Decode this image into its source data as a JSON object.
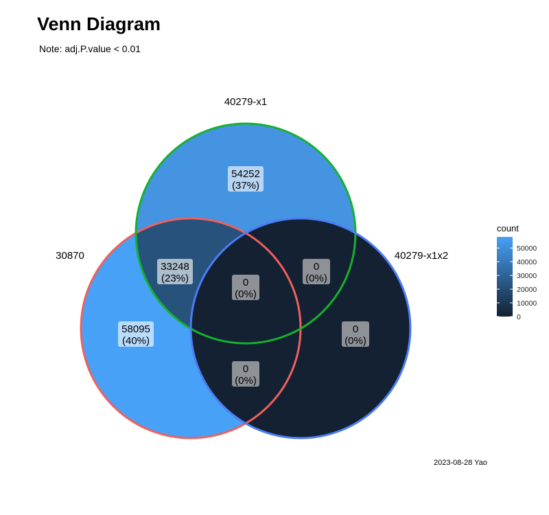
{
  "title": "Venn Diagram",
  "subtitle": "Note: adj.P.value < 0.01",
  "caption": "2023-08-28 Yao",
  "sets": [
    {
      "name": "30870",
      "stroke": "#F0605D"
    },
    {
      "name": "40279-x1",
      "stroke": "#16B12E"
    },
    {
      "name": "40279-x1x2",
      "stroke": "#4C7DF5"
    }
  ],
  "regions": [
    {
      "id": "only-30870",
      "count": "58095",
      "percent": "(40%)",
      "value": 58095,
      "fill": "#47A1F6"
    },
    {
      "id": "only-40279-x1",
      "count": "54252",
      "percent": "(37%)",
      "value": 54252,
      "fill": "#4494E2"
    },
    {
      "id": "only-40279-x1x2",
      "count": "0",
      "percent": "(0%)",
      "value": 0,
      "fill": "#132132"
    },
    {
      "id": "30870-and-40279-x1",
      "count": "33248",
      "percent": "(23%)",
      "value": 33248,
      "fill": "#26527C"
    },
    {
      "id": "30870-and-40279-x1x2",
      "count": "0",
      "percent": "(0%)",
      "value": 0,
      "fill": "#132132"
    },
    {
      "id": "40279-x1-and-40279-x1x2",
      "count": "0",
      "percent": "(0%)",
      "value": 0,
      "fill": "#132132"
    },
    {
      "id": "all-three",
      "count": "0",
      "percent": "(0%)",
      "value": 0,
      "fill": "#132132"
    }
  ],
  "legend": {
    "title": "count",
    "ticks": [
      "50000",
      "40000",
      "30000",
      "20000",
      "10000",
      "0"
    ],
    "tick_values": [
      50000,
      40000,
      30000,
      20000,
      10000,
      0
    ],
    "max": 58095,
    "color_low": "#132132",
    "color_high": "#47A1F6"
  }
}
